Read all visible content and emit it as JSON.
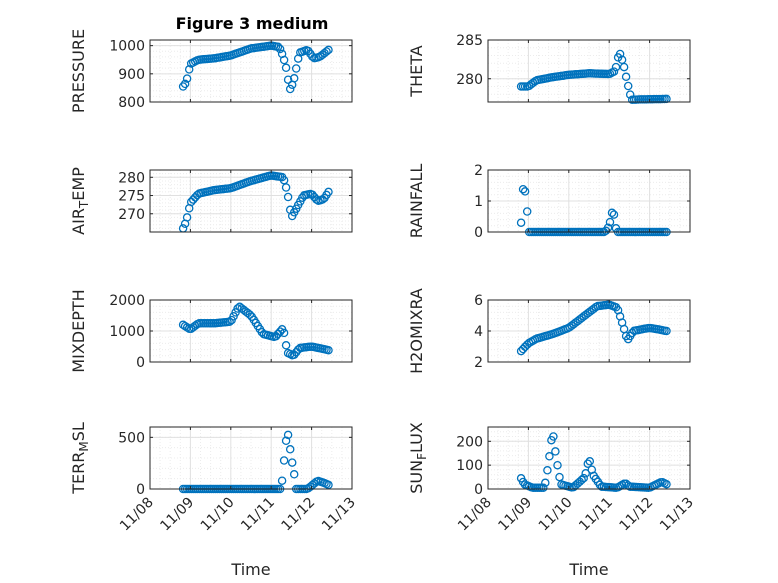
{
  "figure": {
    "title": "Figure 3 medium"
  },
  "colors": {
    "marker": "#0072bd",
    "grid": "#e0e0e0",
    "axis": "#262626"
  },
  "chart_data": [
    {
      "type": "scatter",
      "ylabel": "PRESSURE",
      "ylim": [
        800,
        1020
      ],
      "yticks": [
        800,
        900,
        1000
      ],
      "xlim": [
        "11/08",
        "11/13"
      ],
      "x_ticklabels": [],
      "grid": true,
      "series": [
        {
          "marker": "circle",
          "points": []
        }
      ]
    },
    {
      "type": "scatter",
      "ylabel": "THETA",
      "ylim": [
        277,
        285
      ],
      "yticks": [
        280,
        285
      ],
      "xlim": [
        "11/08",
        "11/13"
      ],
      "x_ticklabels": [],
      "grid": true,
      "series": [
        {
          "marker": "circle",
          "points": []
        }
      ]
    },
    {
      "type": "scatter",
      "ylabel": "AIR_TEMP",
      "ylim": [
        265,
        282
      ],
      "yticks": [
        270,
        275,
        280
      ],
      "xlim": [
        "11/08",
        "11/13"
      ],
      "x_ticklabels": [],
      "grid": true,
      "series": [
        {
          "marker": "circle",
          "points": []
        }
      ]
    },
    {
      "type": "scatter",
      "ylabel": "RAINFALL",
      "ylim": [
        0,
        2
      ],
      "yticks": [
        0,
        1,
        2
      ],
      "xlim": [
        "11/08",
        "11/13"
      ],
      "x_ticklabels": [],
      "grid": true,
      "series": [
        {
          "marker": "circle",
          "points": []
        }
      ]
    },
    {
      "type": "scatter",
      "ylabel": "MIXDEPTH",
      "ylim": [
        0,
        2000
      ],
      "yticks": [
        0,
        1000,
        2000
      ],
      "xlim": [
        "11/08",
        "11/13"
      ],
      "x_ticklabels": [],
      "grid": true,
      "series": [
        {
          "marker": "circle",
          "points": []
        }
      ]
    },
    {
      "type": "scatter",
      "ylabel": "H2OMIXRA",
      "ylim": [
        2,
        6
      ],
      "yticks": [
        2,
        4,
        6
      ],
      "xlim": [
        "11/08",
        "11/13"
      ],
      "x_ticklabels": [],
      "grid": true,
      "series": [
        {
          "marker": "circle",
          "points": []
        }
      ]
    },
    {
      "type": "scatter",
      "ylabel": "TERR_MSL",
      "xlabel": "Time",
      "ylim": [
        0,
        600
      ],
      "yticks": [
        0,
        500
      ],
      "xlim": [
        "11/08",
        "11/13"
      ],
      "x_ticklabels": [
        "11/08",
        "11/09",
        "11/10",
        "11/11",
        "11/12",
        "11/13"
      ],
      "grid": true,
      "series": [
        {
          "marker": "circle",
          "points": []
        }
      ]
    },
    {
      "type": "scatter",
      "ylabel": "SUN_FLUX",
      "xlabel": "Time",
      "ylim": [
        0,
        260
      ],
      "yticks": [
        0,
        100,
        200
      ],
      "xlim": [
        "11/08",
        "11/13"
      ],
      "x_ticklabels": [
        "11/08",
        "11/09",
        "11/10",
        "11/11",
        "11/12",
        "11/13"
      ],
      "grid": true,
      "series": [
        {
          "marker": "circle",
          "points": []
        }
      ]
    }
  ]
}
